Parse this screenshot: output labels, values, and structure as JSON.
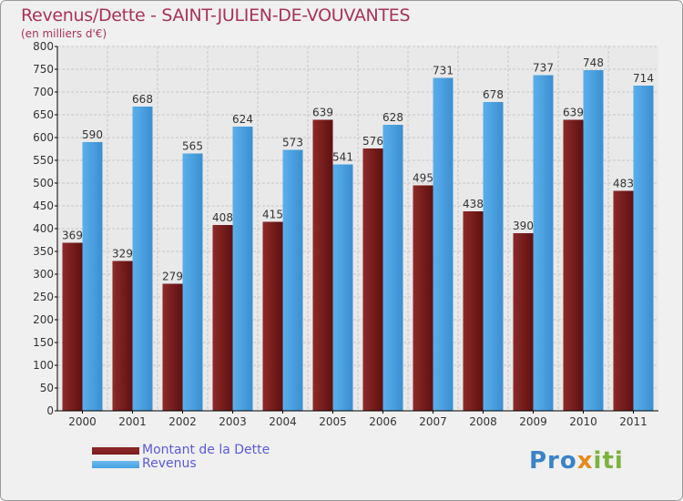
{
  "title": "Revenus/Dette - SAINT-JULIEN-DE-VOUVANTES",
  "subtitle": "(en milliers d'€)",
  "logo": {
    "part1": "Pro",
    "part2": "x",
    "part3": "iti"
  },
  "colors": {
    "dette": "#7a1c1c",
    "revenus": "#4aa0e0",
    "title": "#a8325a",
    "legend_text": "#5b5bd6"
  },
  "chart_data": {
    "type": "bar",
    "title": "Revenus/Dette - SAINT-JULIEN-DE-VOUVANTES",
    "ylabel": "(en milliers d'€)",
    "xlabel": "",
    "categories": [
      "2000",
      "2001",
      "2002",
      "2003",
      "2004",
      "2005",
      "2006",
      "2007",
      "2008",
      "2009",
      "2010",
      "2011"
    ],
    "series": [
      {
        "name": "Montant de la Dette",
        "values": [
          369,
          329,
          279,
          408,
          415,
          639,
          576,
          495,
          438,
          390,
          639,
          483
        ]
      },
      {
        "name": "Revenus",
        "values": [
          590,
          668,
          565,
          624,
          573,
          541,
          628,
          731,
          678,
          737,
          748,
          714
        ]
      }
    ],
    "ylim": [
      0,
      800
    ],
    "yticks": [
      0,
      50,
      100,
      150,
      200,
      250,
      300,
      350,
      400,
      450,
      500,
      550,
      600,
      650,
      700,
      750,
      800
    ],
    "grid": true,
    "legend_position": "bottom-left"
  }
}
